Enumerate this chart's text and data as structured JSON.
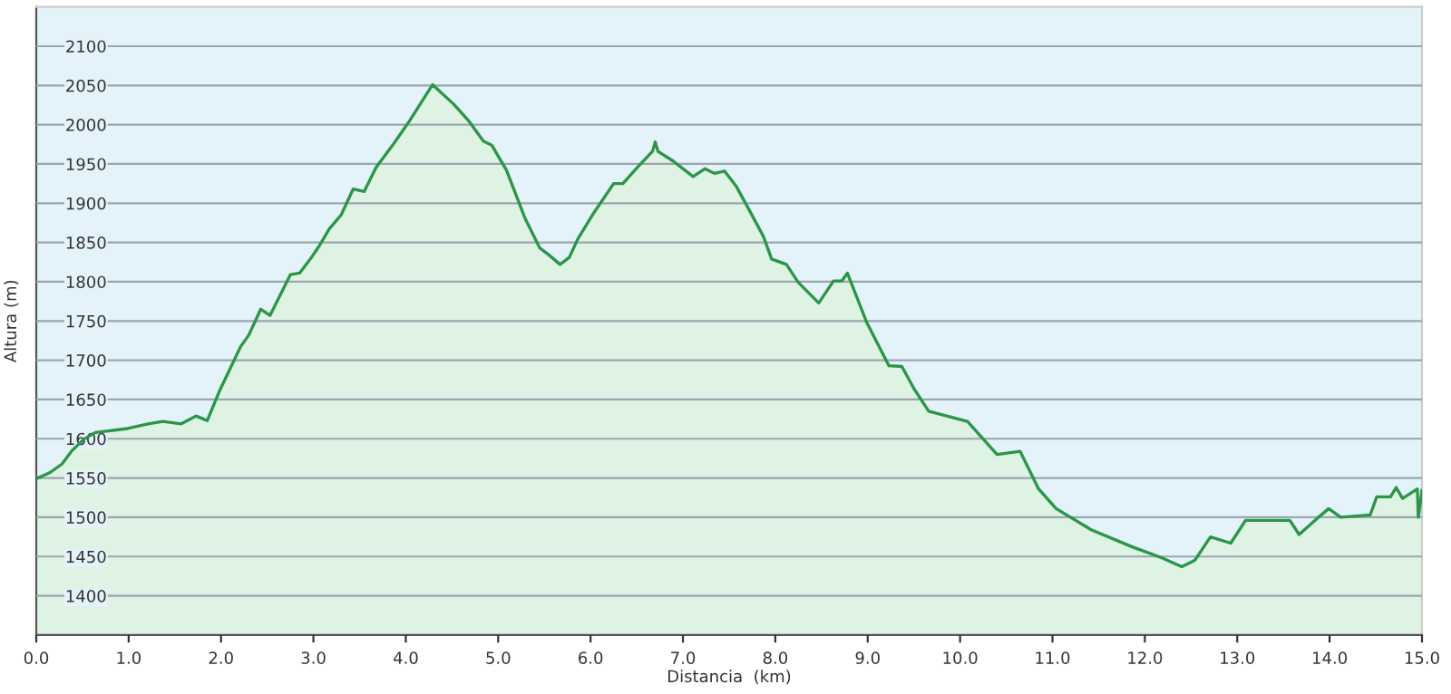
{
  "chart_data": {
    "type": "area",
    "xlabel": "Distancia  (km)",
    "ylabel": "Altura (m)",
    "series": [
      {
        "color": "#2b9548",
        "x": [
          0,
          0.15,
          0.28,
          0.38,
          0.51,
          0.64,
          0.99,
          1.21,
          1.37,
          1.57,
          1.73,
          1.85,
          1.98,
          2.21,
          2.3,
          2.43,
          2.53,
          2.75,
          2.85,
          2.98,
          3.07,
          3.17,
          3.3,
          3.43,
          3.55,
          3.68,
          3.87,
          4.03,
          4.29,
          4.52,
          4.68,
          4.84,
          4.93,
          5.09,
          5.29,
          5.45,
          5.54,
          5.67,
          5.77,
          5.86,
          6.02,
          6.25,
          6.35,
          6.51,
          6.67,
          6.7,
          6.73,
          6.89,
          7.11,
          7.24,
          7.34,
          7.45,
          7.58,
          7.71,
          7.87,
          7.96,
          8.12,
          8.25,
          8.47,
          8.63,
          8.72,
          8.78,
          8.99,
          9.23,
          9.37,
          9.5,
          9.66,
          10.08,
          10.4,
          10.65,
          10.85,
          11.04,
          11.42,
          11.87,
          12.19,
          12.4,
          12.54,
          12.71,
          12.93,
          13.09,
          13.57,
          13.67,
          13.86,
          13.99,
          14.12,
          14.44,
          14.51,
          14.66,
          14.72,
          14.79,
          14.95,
          14.96,
          15.0
        ],
        "values": [
          1549,
          1557,
          1568,
          1584,
          1599,
          1608,
          1613,
          1619,
          1622,
          1619,
          1629,
          1623,
          1660,
          1717,
          1732,
          1765,
          1757,
          1809,
          1811,
          1831,
          1847,
          1867,
          1885,
          1918,
          1915,
          1946,
          1976,
          2003,
          2051,
          2026,
          2005,
          1979,
          1974,
          1942,
          1881,
          1843,
          1835,
          1822,
          1831,
          1854,
          1885,
          1925,
          1925,
          1946,
          1966,
          1978,
          1966,
          1954,
          1934,
          1944,
          1938,
          1941,
          1921,
          1893,
          1858,
          1829,
          1822,
          1799,
          1773,
          1801,
          1801,
          1811,
          1748,
          1693,
          1692,
          1664,
          1635,
          1622,
          1580,
          1584,
          1536,
          1511,
          1484,
          1462,
          1448,
          1437,
          1445,
          1475,
          1467,
          1496,
          1496,
          1478,
          1498,
          1511,
          1500,
          1503,
          1526,
          1526,
          1538,
          1524,
          1536,
          1500,
          1534
        ]
      }
    ],
    "xlim": [
      0,
      15
    ],
    "xticks": [
      {
        "value": 0,
        "label": "0.0"
      },
      {
        "value": 1,
        "label": "1.0"
      },
      {
        "value": 2,
        "label": "2.0"
      },
      {
        "value": 3,
        "label": "3.0"
      },
      {
        "value": 4,
        "label": "4.0"
      },
      {
        "value": 5,
        "label": "5.0"
      },
      {
        "value": 6,
        "label": "6.0"
      },
      {
        "value": 7,
        "label": "7.0"
      },
      {
        "value": 8,
        "label": "8.0"
      },
      {
        "value": 9,
        "label": "9.0"
      },
      {
        "value": 10,
        "label": "10.0"
      },
      {
        "value": 11,
        "label": "11.0"
      },
      {
        "value": 12,
        "label": "12.0"
      },
      {
        "value": 13,
        "label": "13.0"
      },
      {
        "value": 14,
        "label": "14.0"
      },
      {
        "value": 15,
        "label": "15.0"
      }
    ],
    "ylim": [
      1350,
      2150
    ],
    "yticks": [
      1400,
      1450,
      1500,
      1550,
      1600,
      1650,
      1700,
      1750,
      1800,
      1850,
      1900,
      1950,
      2000,
      2050,
      2100
    ],
    "grid": "y",
    "legend": false
  }
}
